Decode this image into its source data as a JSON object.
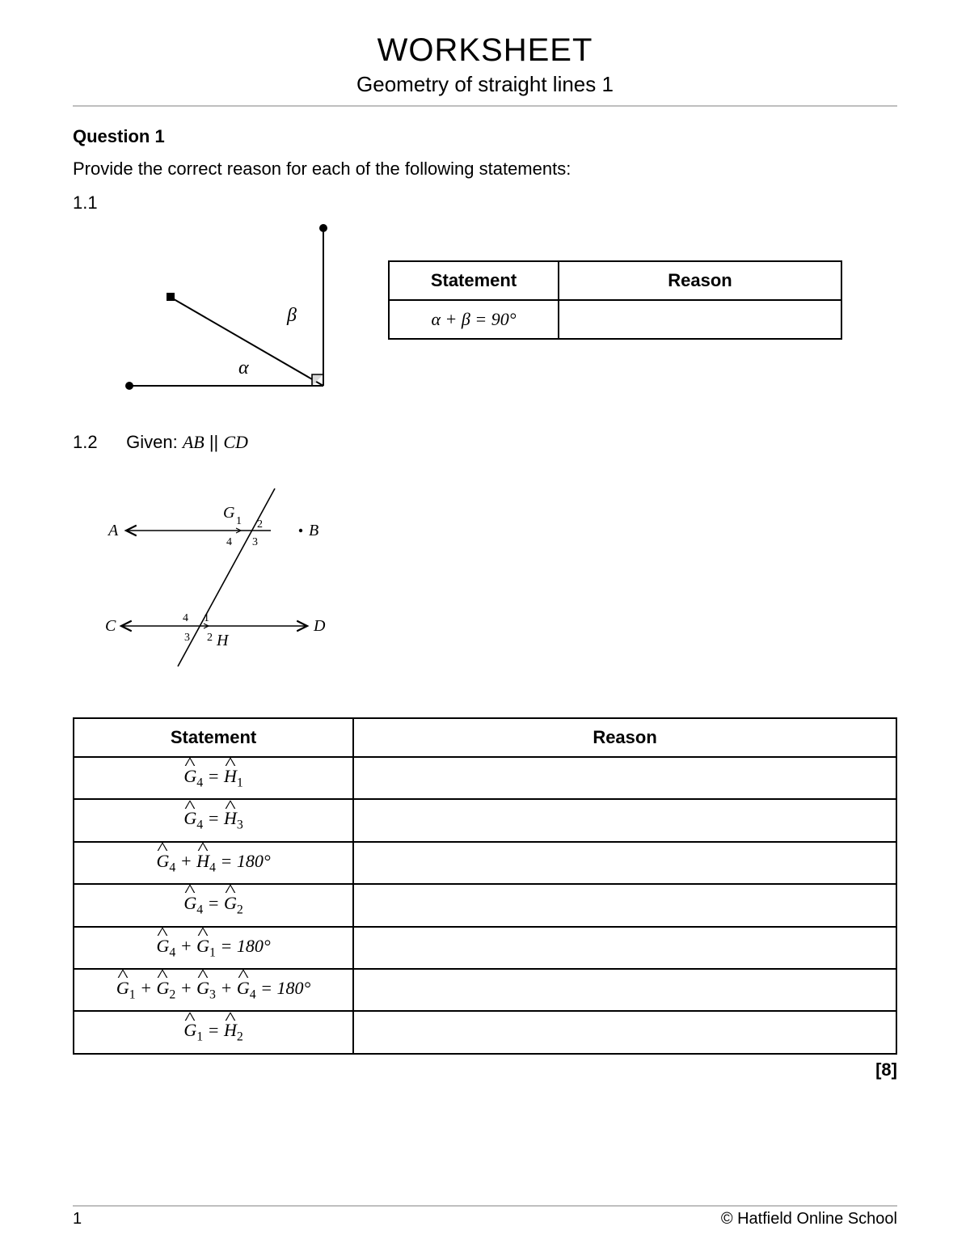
{
  "header": {
    "title": "WORKSHEET",
    "subtitle": "Geometry of straight lines 1"
  },
  "question": {
    "heading": "Question 1",
    "intro": "Provide the correct reason for each of the following statements:",
    "part11": {
      "label": "1.1",
      "table": {
        "columns": [
          "Statement",
          "Reason"
        ],
        "rows": [
          {
            "statement_html": "<span class='math'>α + β = 90°</span>",
            "reason": ""
          }
        ]
      },
      "diagram": {
        "alpha": "α",
        "beta": "β",
        "line_color": "#000000",
        "point_color": "#000000",
        "stroke_width": 2
      }
    },
    "part12": {
      "label": "1.2",
      "given_prefix": "Given: ",
      "given_math": "AB",
      "given_par": " || ",
      "given_math2": "CD",
      "diagram": {
        "labels": {
          "A": "A",
          "B": "B",
          "C": "C",
          "D": "D",
          "G": "G",
          "H": "H"
        },
        "angles_G": [
          "1",
          "2",
          "3",
          "4"
        ],
        "angles_H": [
          "1",
          "2",
          "3",
          "4"
        ],
        "line_color": "#000000",
        "stroke_width": 1.6
      },
      "table": {
        "columns": [
          "Statement",
          "Reason"
        ],
        "rows": [
          {
            "statement_html": "<span class='math'><span class='hat'>G</span><sub>4</sub> = <span class='hat'>H</span><sub>1</sub></span>",
            "reason": ""
          },
          {
            "statement_html": "<span class='math'><span class='hat'>G</span><sub>4</sub> = <span class='hat'>H</span><sub>3</sub></span>",
            "reason": ""
          },
          {
            "statement_html": "<span class='math'><span class='hat'>G</span><sub>4</sub> + <span class='hat'>H</span><sub>4</sub> = 180°</span>",
            "reason": ""
          },
          {
            "statement_html": "<span class='math'><span class='hat'>G</span><sub>4</sub> = <span class='hat'>G</span><sub>2</sub></span>",
            "reason": ""
          },
          {
            "statement_html": "<span class='math'><span class='hat'>G</span><sub>4</sub> + <span class='hat'>G</span><sub>1</sub> = 180°</span>",
            "reason": ""
          },
          {
            "statement_html": "<span class='math'><span class='hat'>G</span><sub>1</sub> + <span class='hat'>G</span><sub>2</sub> + <span class='hat'>G</span><sub>3</sub> + <span class='hat'>G</span><sub>4</sub> = 180°</span>",
            "reason": ""
          },
          {
            "statement_html": "<span class='math'><span class='hat'>G</span><sub>1</sub> = <span class='hat'>H</span><sub>2</sub></span>",
            "reason": ""
          }
        ]
      }
    },
    "marks": "[8]"
  },
  "footer": {
    "page_num": "1",
    "copyright": "© Hatfield Online School"
  }
}
